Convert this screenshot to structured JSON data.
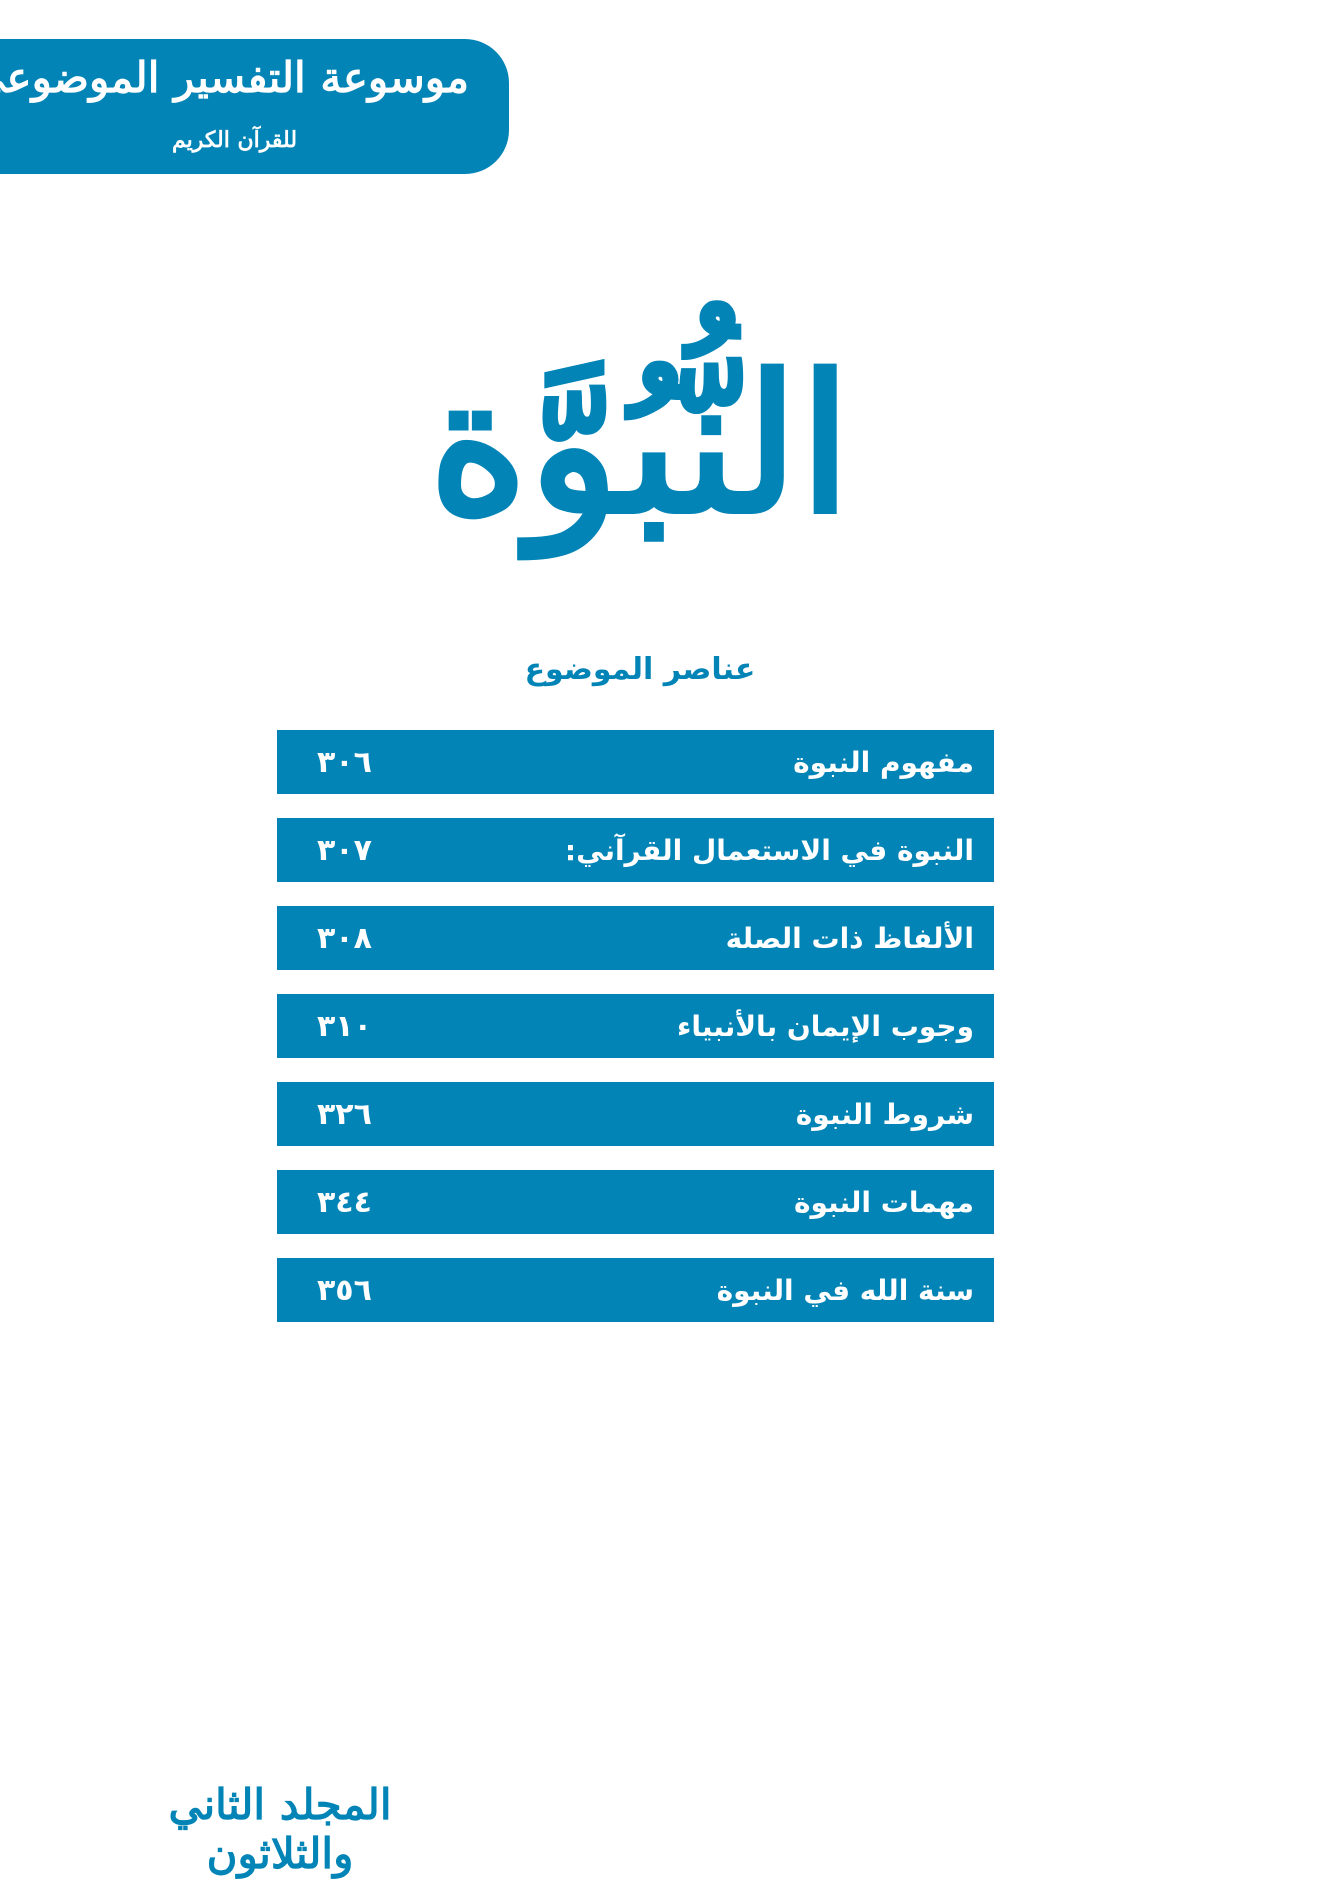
{
  "banner": {
    "title": "موسوعة التفسير الموضوعي",
    "subtitle": "للقرآن الكريم"
  },
  "main_title": "النُّبُوَّة",
  "toc": {
    "heading": "عناصر الموضوع",
    "items": [
      {
        "label": "مفهوم النبوة",
        "page": "٣٠٦"
      },
      {
        "label": "النبوة في الاستعمال القرآني:",
        "page": "٣٠٧"
      },
      {
        "label": "الألفاظ ذات الصلة",
        "page": "٣٠٨"
      },
      {
        "label": "وجوب الإيمان بالأنبياء",
        "page": "٣١٠"
      },
      {
        "label": "شروط النبوة",
        "page": "٣٢٦"
      },
      {
        "label": "مهمات النبوة",
        "page": "٣٤٤"
      },
      {
        "label": "سنة الله في النبوة",
        "page": "٣٥٦"
      }
    ]
  },
  "footer": {
    "volume": "المجلد الثاني والثلاثون"
  },
  "colors": {
    "accent": "#0284b6"
  }
}
